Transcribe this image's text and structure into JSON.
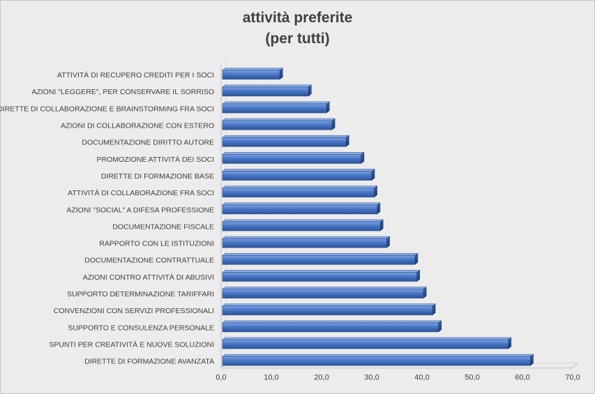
{
  "chart_data": {
    "type": "bar",
    "orientation": "horizontal",
    "title": [
      "attività preferite",
      "(per tutti)"
    ],
    "categories": [
      "ATTIVITÀ DI RECUPERO CREDITI PER I SOCI",
      "AZIONI \"LEGGERE\", PER CONSERVARE IL SORRISO",
      "DIRETTE DI COLLABORAZIONE E BRAINSTORMING FRA SOCI",
      "AZIONI DI COLLABORAZIONE CON ESTERO",
      "DOCUMENTAZIONE DIRITTO AUTORE",
      "PROMOZIONE ATTIVITÀ DEI SOCI",
      "DIRETTE DI FORMAZIONE BASE",
      "ATTIVITÀ DI COLLABORAZIONE FRA SOCI",
      "AZIONI \"SOCIAL\" A DIFESA PROFESSIONE",
      "DOCUMENTAZIONE FISCALE",
      "RAPPORTO CON LE ISTITUZIONI",
      "DOCUMENTAZIONE CONTRATTUALE",
      "AZIONI CONTRO ATTIVITÀ DI ABUSIVI",
      "SUPPORTO DETERMINAZIONE TARIFFARI",
      "CONVENZIONI CON SERVIZI PROFESSIONALI",
      "SUPPORTO E CONSULENZA PERSONALE",
      "SPUNTI PER CREATIVITÀ E NUOVE SOLUZIONI",
      "DIRETTE DI FORMAZIONE AVANZATA"
    ],
    "values": [
      11.7,
      17.4,
      21.0,
      22.1,
      24.9,
      27.9,
      30.0,
      30.5,
      31.1,
      31.7,
      33.0,
      38.6,
      39.0,
      40.3,
      42.1,
      43.3,
      57.2,
      61.6
    ],
    "xlim": [
      0,
      70
    ],
    "xticks": [
      "0,0",
      "10,0",
      "20,0",
      "30,0",
      "40,0",
      "50,0",
      "60,0",
      "70,0"
    ],
    "bar_color": "#4472c4",
    "gridlines": false,
    "legend": "none"
  }
}
